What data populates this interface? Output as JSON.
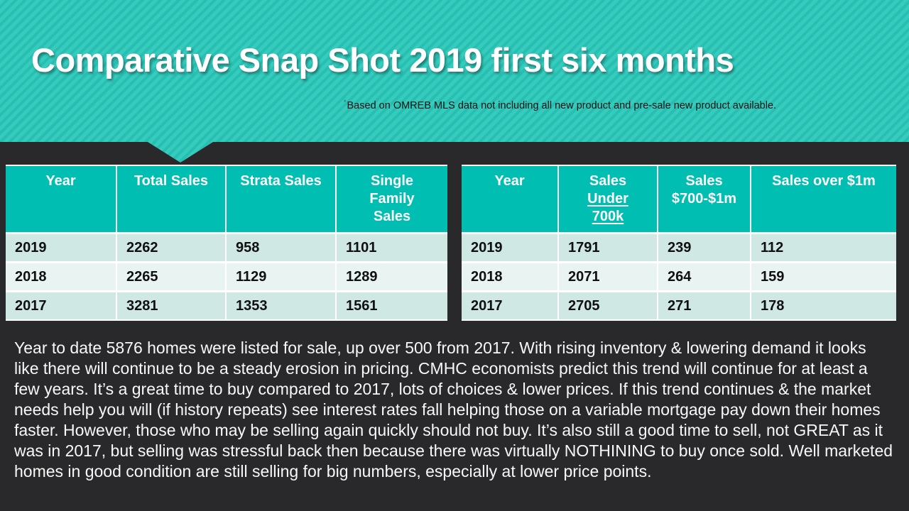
{
  "slide": {
    "title": "Comparative Snap Shot 2019 first six months",
    "footnote_mark": "*",
    "footnote": "Based on OMREB MLS data not including all new product and pre-sale new product available.",
    "theme": {
      "banner_teal_light": "#35cbbd",
      "banner_teal_dark": "#28bfb2",
      "table_header_teal": "#00bfb2",
      "row_tint_a": "#cfe8e4",
      "row_tint_b": "#e9f4f2",
      "background_dark": "#29292b",
      "header_text": "#ffffff",
      "cell_text": "#101010",
      "body_text": "#f8f8f8"
    }
  },
  "sales_by_type_table": {
    "headers": [
      "Year",
      "Total Sales",
      "Strata Sales",
      "Single Family Sales"
    ],
    "rows": [
      [
        "2019",
        "2262",
        "958",
        "1101"
      ],
      [
        "2018",
        "2265",
        "1129",
        "1289"
      ],
      [
        "2017",
        "3281",
        "1353",
        "1561"
      ]
    ]
  },
  "sales_by_price_table": {
    "headers": [
      "Year",
      {
        "line1": "Sales",
        "underlined": "Under 700k"
      },
      "Sales $700-$1m",
      "Sales over $1m"
    ],
    "rows": [
      [
        "2019",
        "1791",
        "239",
        "112"
      ],
      [
        "2018",
        "2071",
        "264",
        "159"
      ],
      [
        "2017",
        "2705",
        "271",
        "178"
      ]
    ]
  },
  "commentary": "Year to date 5876 homes were listed for sale, up over 500 from 2017.  With rising inventory & lowering demand it looks like there will continue to be a steady erosion in pricing. CMHC economists predict this trend will continue for at least a few years.  It’s a great time to buy compared to 2017, lots of choices & lower prices. If this trend continues & the market needs help you will (if history repeats) see interest rates fall helping those on a variable mortgage pay down their homes faster. However, those who may be selling again quickly should not buy.  It’s also still a good time to sell, not GREAT as it was in 2017,  but selling was stressful back then because there was virtually NOTHINING to buy once sold.  Well marketed homes in good condition are still selling for big numbers, especially at lower price points."
}
